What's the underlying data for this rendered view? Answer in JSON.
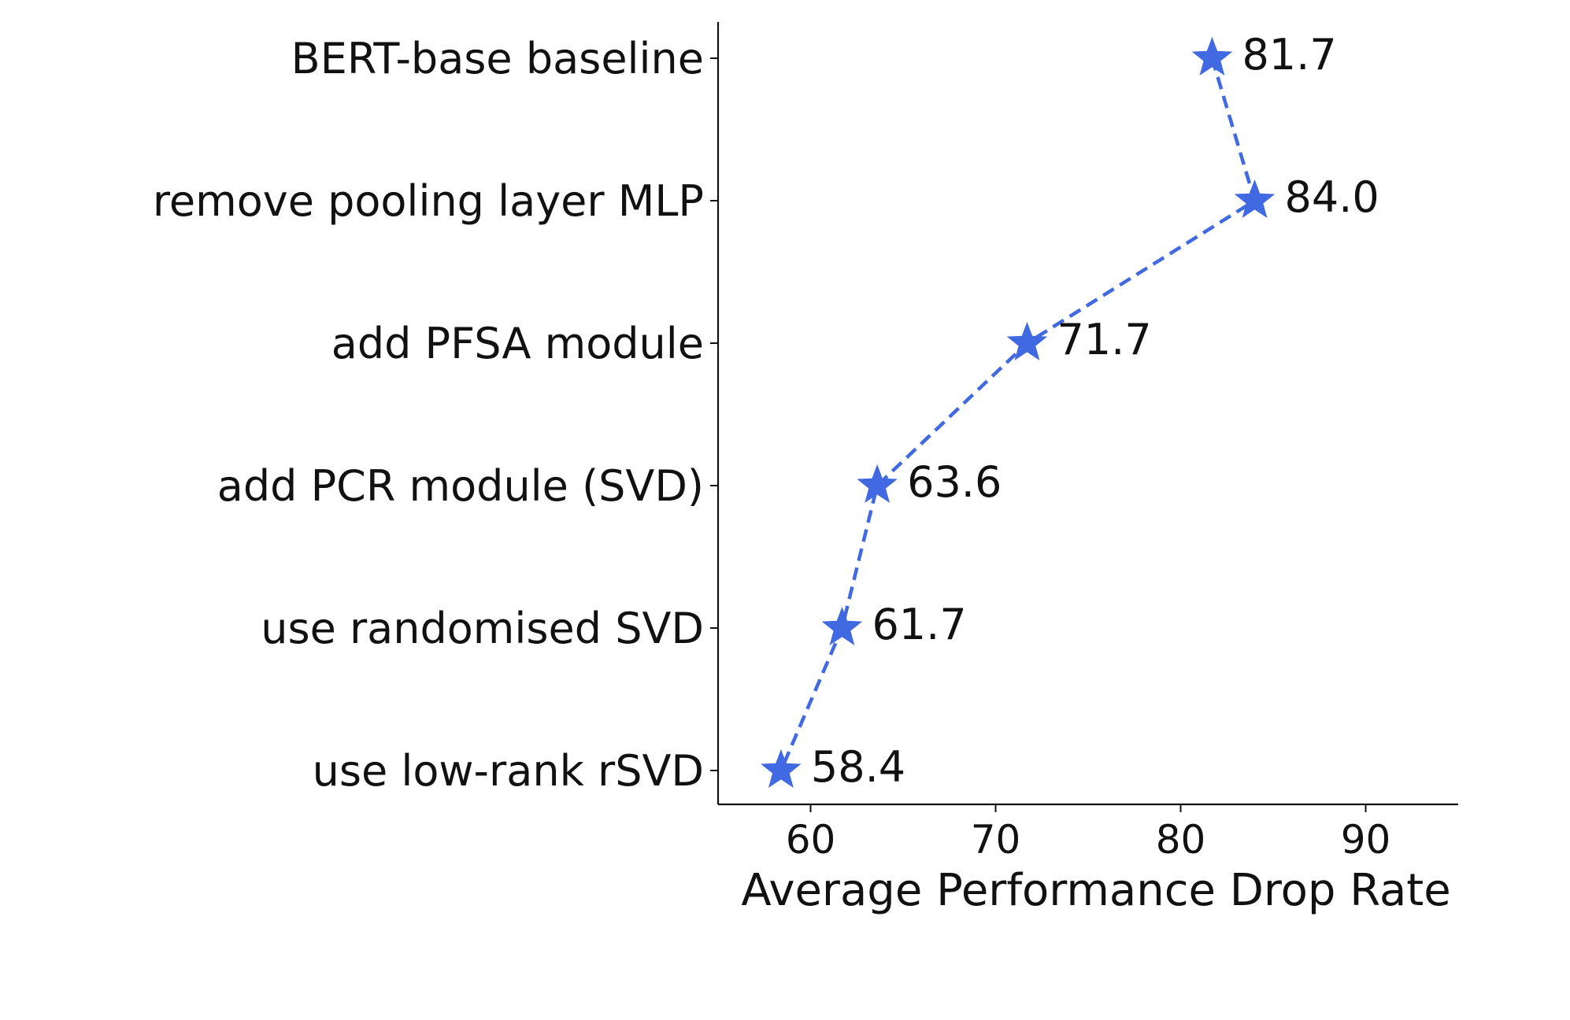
{
  "chart_data": {
    "type": "line",
    "orientation": "horizontal",
    "categories": [
      "BERT-base baseline",
      "remove pooling layer MLP",
      "add PFSA module",
      "add PCR module (SVD)",
      "use randomised SVD",
      "use low-rank rSVD"
    ],
    "values": [
      81.7,
      84.0,
      71.7,
      63.6,
      61.7,
      58.4
    ],
    "data_labels": [
      "81.7",
      "84.0",
      "71.7",
      "63.6",
      "61.7",
      "58.4"
    ],
    "xlabel": "Average Performance Drop Rate",
    "ylabel": "",
    "xlim": [
      55,
      95
    ],
    "xticks": [
      60,
      70,
      80,
      90
    ],
    "xtick_labels": [
      "60",
      "70",
      "80",
      "90"
    ],
    "marker": "star",
    "line_style": "dashed",
    "color": "#4169E1",
    "grid": false
  }
}
